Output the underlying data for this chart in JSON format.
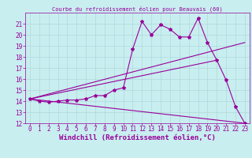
{
  "title": "Courbe du refroidissement éolien pour Beauvais (60)",
  "xlabel": "Windchill (Refroidissement éolien,°C)",
  "background_color": "#c8eef0",
  "grid_color": "#b0d8da",
  "line_color": "#990099",
  "xlim": [
    -0.5,
    23.5
  ],
  "ylim": [
    12,
    22
  ],
  "xticks": [
    0,
    1,
    2,
    3,
    4,
    5,
    6,
    7,
    8,
    9,
    10,
    11,
    12,
    13,
    14,
    15,
    16,
    17,
    18,
    19,
    20,
    21,
    22,
    23
  ],
  "yticks": [
    12,
    13,
    14,
    15,
    16,
    17,
    18,
    19,
    20,
    21
  ],
  "series": [
    {
      "x": [
        0,
        1,
        2,
        3,
        4,
        5,
        6,
        7,
        8,
        9,
        10,
        11,
        12,
        13,
        14,
        15,
        16,
        17,
        18,
        19,
        20,
        21,
        22,
        23
      ],
      "y": [
        14.2,
        14.0,
        13.9,
        14.0,
        14.1,
        14.1,
        14.2,
        14.5,
        14.5,
        15.0,
        15.2,
        18.7,
        21.2,
        20.0,
        20.9,
        20.5,
        19.8,
        19.8,
        21.5,
        19.3,
        17.7,
        15.9,
        13.5,
        12.0
      ],
      "marker": "*",
      "markersize": 3,
      "linewidth": 0.8
    },
    {
      "x": [
        0,
        23
      ],
      "y": [
        14.2,
        19.3
      ],
      "marker": null,
      "markersize": 0,
      "linewidth": 0.8
    },
    {
      "x": [
        0,
        20
      ],
      "y": [
        14.2,
        17.7
      ],
      "marker": null,
      "markersize": 0,
      "linewidth": 0.8
    },
    {
      "x": [
        0,
        23
      ],
      "y": [
        14.2,
        12.0
      ],
      "marker": null,
      "markersize": 0,
      "linewidth": 0.8
    }
  ],
  "tick_fontsize": 5.5,
  "label_fontsize": 6.5
}
